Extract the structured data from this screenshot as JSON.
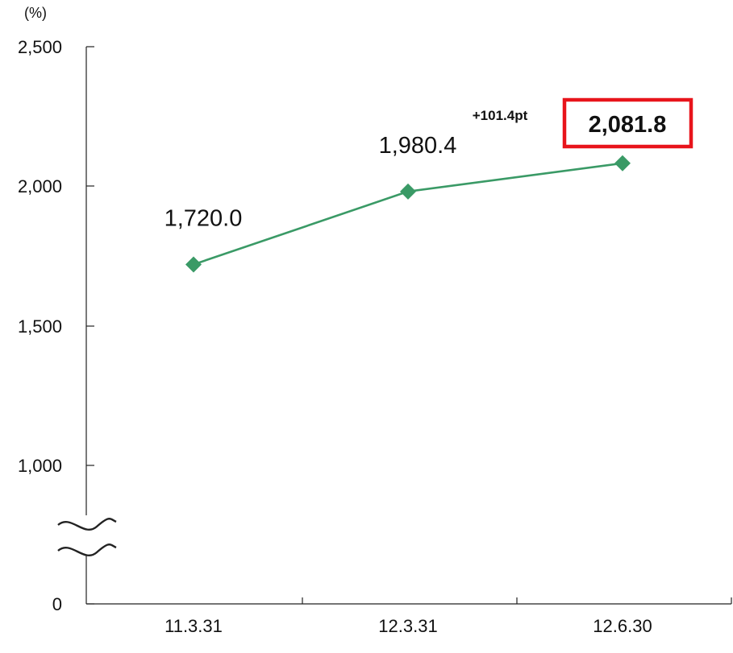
{
  "chart_data": {
    "type": "line",
    "unit": "(%)",
    "categories": [
      "11.3.31",
      "12.3.31",
      "12.6.30"
    ],
    "values": [
      1720.0,
      1980.4,
      2081.8
    ],
    "data_labels": [
      "1,720.0",
      "1,980.4",
      "2,081.8"
    ],
    "yticks": [
      {
        "value": 0,
        "label": "0"
      },
      {
        "value": 1000,
        "label": "1,000"
      },
      {
        "value": 1500,
        "label": "1,500"
      },
      {
        "value": 2000,
        "label": "2,000"
      },
      {
        "value": 2500,
        "label": "2,500"
      }
    ],
    "ylim": [
      0,
      2500
    ],
    "axis_break": true,
    "grid": false,
    "line_color": "#3a9a66",
    "highlight_color": "#e8141b",
    "highlight_index": 2,
    "annotation": "+101.4pt"
  }
}
